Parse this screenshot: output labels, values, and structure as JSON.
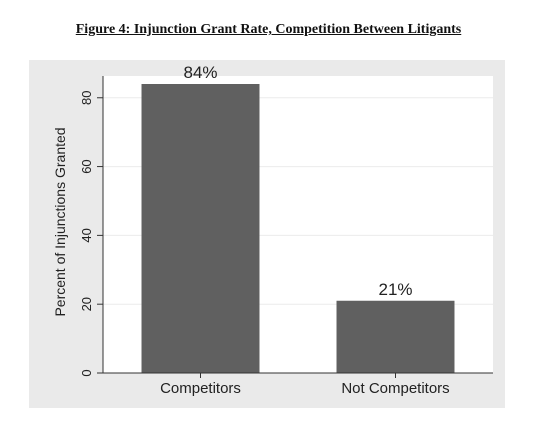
{
  "figure_title": "Figure 4:  Injunction Grant Rate, Competition Between Litigants",
  "chart_data": {
    "type": "bar",
    "categories": [
      "Competitors",
      "Not Competitors"
    ],
    "values": [
      84,
      21
    ],
    "data_labels": [
      "84%",
      "21%"
    ],
    "ylabel": "Percent of Injunctions Granted",
    "xlabel": "",
    "ylim": [
      0,
      84
    ],
    "yticks": [
      0,
      20,
      40,
      60,
      80
    ],
    "grid": true,
    "bar_color": "#606060",
    "panel_color": "#eaeaea",
    "plot_color": "#ffffff"
  }
}
